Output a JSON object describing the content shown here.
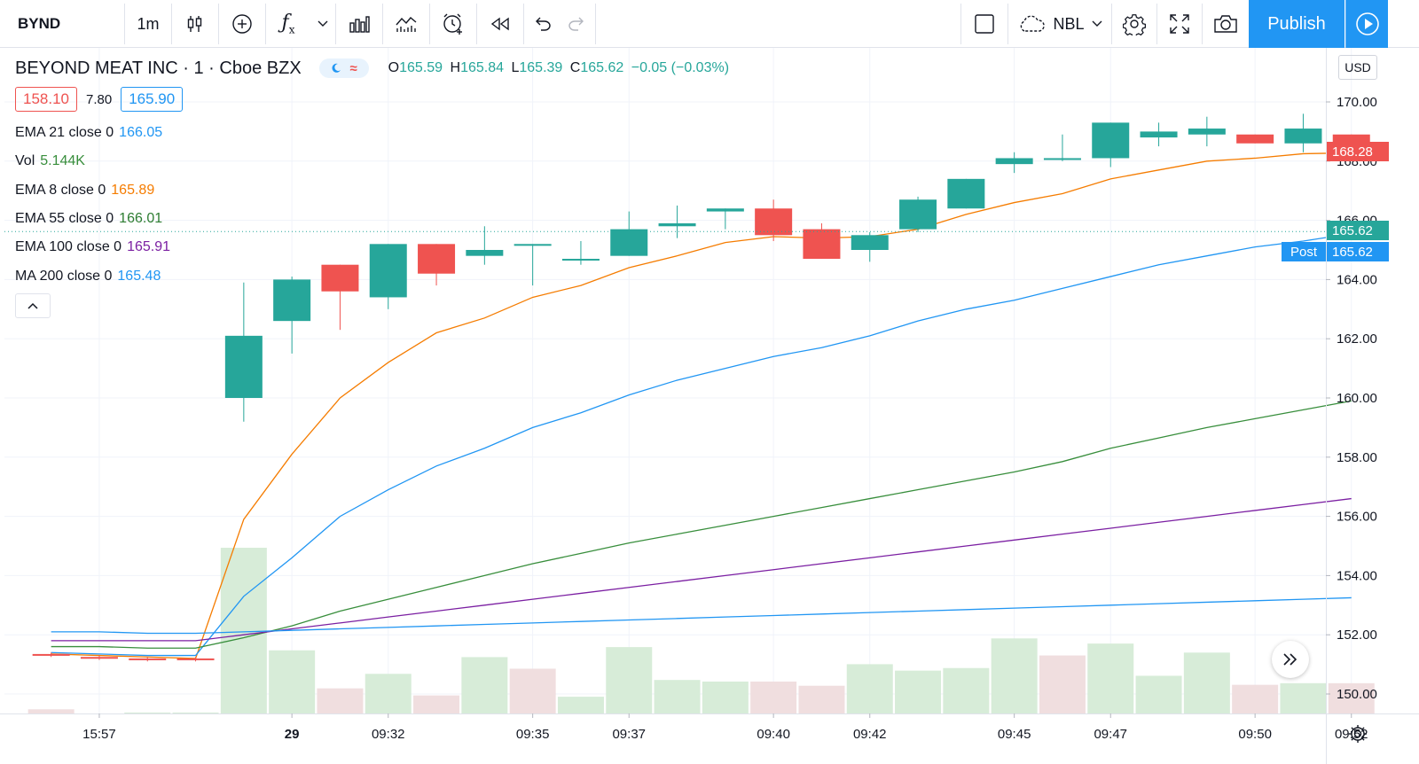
{
  "toolbar": {
    "symbol": "BYND",
    "interval": "1m",
    "compare_symbol": "NBL",
    "publish_label": "Publish"
  },
  "legend": {
    "title": "BEYOND MEAT INC · 1 · Cboe BZX",
    "ohlc": {
      "o_label": "O",
      "o": "165.59",
      "h_label": "H",
      "h": "165.84",
      "l_label": "L",
      "l": "165.39",
      "c_label": "C",
      "c": "165.62",
      "change": "−0.05 (−0.03%)"
    },
    "bid": "158.10",
    "spread": "7.80",
    "ask": "165.90",
    "studies": [
      {
        "label": "EMA 21 close 0",
        "value": "166.05",
        "color": "#2196f3"
      },
      {
        "label": "Vol",
        "value": "5.144K",
        "color": "#388e3c"
      },
      {
        "label": "EMA 8 close 0",
        "value": "165.89",
        "color": "#f57c00"
      },
      {
        "label": "EMA 55 close 0",
        "value": "166.01",
        "color": "#2e7d32"
      },
      {
        "label": "EMA 100 close 0",
        "value": "165.91",
        "color": "#7b1fa2"
      },
      {
        "label": "MA 200 close 0",
        "value": "165.48",
        "color": "#2196f3"
      }
    ]
  },
  "price_axis": {
    "currency": "USD",
    "last_price_label": "168.28",
    "current_label": "165.62",
    "post_label": "Post",
    "post_value": "165.62"
  },
  "colors": {
    "up": "#26a69a",
    "down": "#ef5350",
    "vol_up": "#d7ecd8",
    "vol_down": "#f0dedf",
    "ema8": "#f57c00",
    "ema21": "#2196f3",
    "ema55": "#388e3c",
    "ema100": "#7b1fa2",
    "ma200": "#2196f3",
    "grid": "#f0f3fa"
  },
  "chart_data": {
    "type": "candlestick",
    "title": "BEYOND MEAT INC · 1 · Cboe BZX",
    "ylim": [
      149.1,
      171.2
    ],
    "y_ticks": [
      "170.00",
      "168.00",
      "166.00",
      "164.00",
      "162.00",
      "160.00",
      "158.00",
      "156.00",
      "154.00",
      "152.00",
      "150.00"
    ],
    "x_ticks": [
      "15:57",
      "29",
      "09:32",
      "09:35",
      "09:37",
      "09:40",
      "09:42",
      "09:45",
      "09:47",
      "09:50",
      "09:52"
    ],
    "x_tick_slots": [
      1.5,
      5.5,
      7.5,
      10.5,
      12.5,
      15.5,
      17.5,
      20.5,
      22.5,
      25.5,
      27.5
    ],
    "candles": [
      {
        "o": 151.35,
        "h": 151.4,
        "c": 151.3,
        "l": 151.25
      },
      {
        "o": 151.25,
        "h": 151.3,
        "c": 151.2,
        "l": 151.15
      },
      {
        "o": 151.2,
        "h": 151.25,
        "c": 151.15,
        "l": 151.1
      },
      {
        "o": 151.2,
        "h": 151.25,
        "c": 151.15,
        "l": 151.1
      },
      {
        "o": 160.0,
        "h": 163.9,
        "c": 162.1,
        "l": 159.2
      },
      {
        "o": 162.6,
        "h": 164.1,
        "c": 164.0,
        "l": 161.5
      },
      {
        "o": 164.5,
        "h": 164.5,
        "c": 163.6,
        "l": 162.3
      },
      {
        "o": 163.4,
        "h": 165.2,
        "c": 165.2,
        "l": 163.0
      },
      {
        "o": 165.2,
        "h": 165.2,
        "c": 164.2,
        "l": 163.8
      },
      {
        "o": 164.8,
        "h": 165.8,
        "c": 165.0,
        "l": 164.5
      },
      {
        "o": 165.2,
        "h": 165.2,
        "c": 165.2,
        "l": 163.8
      },
      {
        "o": 164.7,
        "h": 165.3,
        "c": 164.7,
        "l": 164.5
      },
      {
        "o": 164.8,
        "h": 166.3,
        "c": 165.7,
        "l": 164.8
      },
      {
        "o": 165.8,
        "h": 166.5,
        "c": 165.9,
        "l": 165.4
      },
      {
        "o": 166.3,
        "h": 166.4,
        "c": 166.4,
        "l": 165.7
      },
      {
        "o": 166.4,
        "h": 166.7,
        "c": 165.5,
        "l": 165.3
      },
      {
        "o": 165.7,
        "h": 165.9,
        "c": 164.7,
        "l": 164.7
      },
      {
        "o": 165.0,
        "h": 165.6,
        "c": 165.5,
        "l": 164.6
      },
      {
        "o": 165.7,
        "h": 166.8,
        "c": 166.7,
        "l": 165.6
      },
      {
        "o": 166.4,
        "h": 167.4,
        "c": 167.4,
        "l": 166.4
      },
      {
        "o": 167.9,
        "h": 168.3,
        "c": 168.1,
        "l": 167.6
      },
      {
        "o": 168.1,
        "h": 168.9,
        "c": 168.1,
        "l": 168.0
      },
      {
        "o": 168.1,
        "h": 169.3,
        "c": 169.3,
        "l": 167.8
      },
      {
        "o": 168.8,
        "h": 169.3,
        "c": 169.0,
        "l": 168.5
      },
      {
        "o": 168.9,
        "h": 169.5,
        "c": 169.1,
        "l": 168.5
      },
      {
        "o": 168.9,
        "h": 168.9,
        "c": 168.6,
        "l": 168.6
      },
      {
        "o": 168.6,
        "h": 169.6,
        "c": 169.1,
        "l": 168.3
      },
      {
        "o": 168.9,
        "h": 168.9,
        "c": 168.3,
        "l": 168.3
      }
    ],
    "volume": [
      {
        "v": 130,
        "up": false
      },
      {
        "v": 0,
        "up": true
      },
      {
        "v": 30,
        "up": true
      },
      {
        "v": 30,
        "up": true
      },
      {
        "v": 5144,
        "up": true
      },
      {
        "v": 1960,
        "up": true
      },
      {
        "v": 780,
        "up": false
      },
      {
        "v": 1230,
        "up": true
      },
      {
        "v": 560,
        "up": false
      },
      {
        "v": 1750,
        "up": true
      },
      {
        "v": 1390,
        "up": false
      },
      {
        "v": 520,
        "up": true
      },
      {
        "v": 2060,
        "up": true
      },
      {
        "v": 1040,
        "up": true
      },
      {
        "v": 990,
        "up": true
      },
      {
        "v": 990,
        "up": false
      },
      {
        "v": 860,
        "up": false
      },
      {
        "v": 1530,
        "up": true
      },
      {
        "v": 1330,
        "up": true
      },
      {
        "v": 1410,
        "up": true
      },
      {
        "v": 2330,
        "up": true
      },
      {
        "v": 1800,
        "up": false
      },
      {
        "v": 2170,
        "up": true
      },
      {
        "v": 1170,
        "up": true
      },
      {
        "v": 1890,
        "up": true
      },
      {
        "v": 890,
        "up": false
      },
      {
        "v": 940,
        "up": true
      },
      {
        "v": 940,
        "up": false
      }
    ],
    "series": [
      {
        "name": "EMA 8 close 0",
        "values": [
          151.35,
          151.3,
          151.25,
          151.2,
          155.9,
          158.1,
          160.0,
          161.2,
          162.2,
          162.7,
          163.4,
          163.8,
          164.4,
          164.8,
          165.25,
          165.45,
          165.4,
          165.45,
          165.7,
          166.2,
          166.6,
          166.9,
          167.4,
          167.7,
          168.0,
          168.1,
          168.25,
          168.28
        ]
      },
      {
        "name": "EMA 21 close 0",
        "values": [
          151.4,
          151.35,
          151.3,
          151.3,
          153.3,
          154.6,
          156.0,
          156.9,
          157.7,
          158.3,
          159.0,
          159.5,
          160.1,
          160.6,
          161.0,
          161.4,
          161.7,
          162.1,
          162.6,
          163.0,
          163.3,
          163.7,
          164.1,
          164.5,
          164.8,
          165.1,
          165.3,
          165.55
        ]
      },
      {
        "name": "EMA 55 close 0",
        "values": [
          151.6,
          151.6,
          151.55,
          151.55,
          151.9,
          152.3,
          152.8,
          153.2,
          153.6,
          154.0,
          154.4,
          154.75,
          155.1,
          155.4,
          155.7,
          156.0,
          156.3,
          156.6,
          156.9,
          157.2,
          157.5,
          157.85,
          158.3,
          158.65,
          159.0,
          159.3,
          159.6,
          159.9
        ]
      },
      {
        "name": "EMA 100 close 0",
        "values": [
          151.8,
          151.8,
          151.8,
          151.8,
          152.0,
          152.2,
          152.4,
          152.6,
          152.8,
          153.0,
          153.2,
          153.4,
          153.6,
          153.8,
          154.0,
          154.2,
          154.4,
          154.6,
          154.8,
          155.0,
          155.2,
          155.4,
          155.6,
          155.8,
          156.0,
          156.2,
          156.4,
          156.6
        ]
      },
      {
        "name": "MA 200 close 0",
        "values": [
          152.1,
          152.1,
          152.05,
          152.05,
          152.1,
          152.15,
          152.2,
          152.25,
          152.3,
          152.35,
          152.4,
          152.45,
          152.5,
          152.55,
          152.6,
          152.65,
          152.7,
          152.75,
          152.8,
          152.85,
          152.9,
          152.95,
          153.0,
          153.05,
          153.1,
          153.15,
          153.2,
          153.25
        ]
      }
    ]
  }
}
